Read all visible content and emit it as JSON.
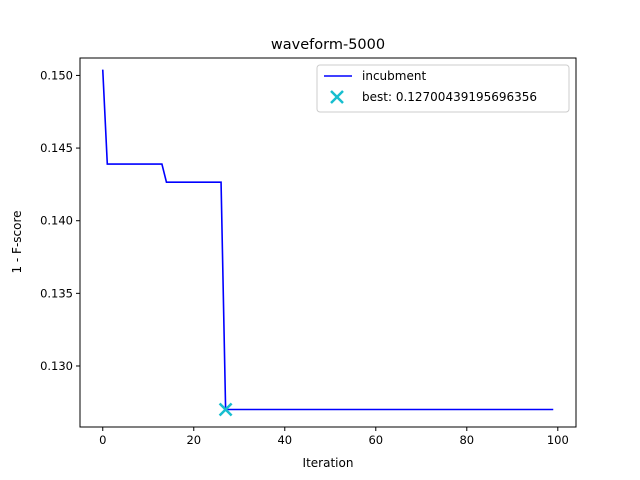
{
  "chart_data": {
    "type": "line",
    "title": "waveform-5000",
    "xlabel": "Iteration",
    "ylabel": "1 - F-score",
    "xlim": [
      -5,
      104
    ],
    "ylim": [
      0.1258,
      0.1512
    ],
    "xticks": [
      0,
      20,
      40,
      60,
      80,
      100
    ],
    "xtick_labels": [
      "0",
      "20",
      "40",
      "60",
      "80",
      "100"
    ],
    "yticks": [
      0.13,
      0.135,
      0.14,
      0.145,
      0.15
    ],
    "ytick_labels": [
      "0.130",
      "0.135",
      "0.140",
      "0.145",
      "0.150"
    ],
    "grid": false,
    "legend_position": "top-right",
    "series": [
      {
        "name": "incubment",
        "color": "#0000ff",
        "points": [
          [
            0,
            0.1504
          ],
          [
            1,
            0.1439
          ],
          [
            13,
            0.1439
          ],
          [
            14,
            0.14265
          ],
          [
            26,
            0.14265
          ],
          [
            27,
            0.1270044
          ],
          [
            99,
            0.1270044
          ]
        ]
      }
    ],
    "best": {
      "label": "best: 0.12700439195696356",
      "x": 27,
      "y": 0.12700439195696356,
      "color": "#17becf",
      "marker": "x"
    }
  }
}
